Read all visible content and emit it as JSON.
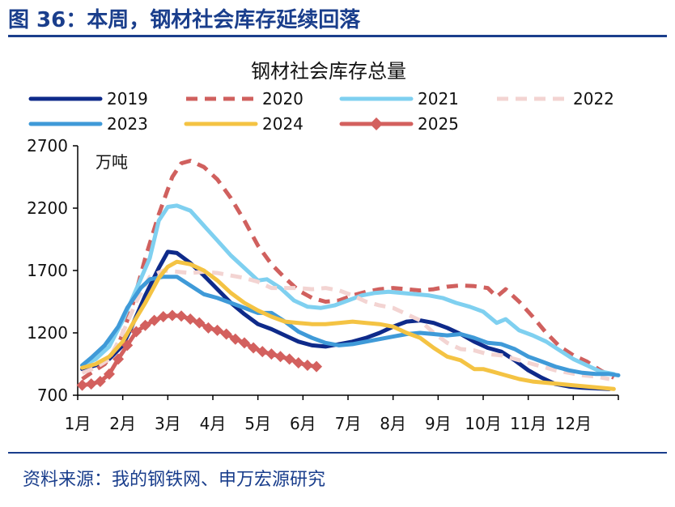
{
  "figure": {
    "title": "图 36：本周，钢材社会库存延续回落",
    "source": "资料来源：我的钢铁网、申万宏源研究"
  },
  "chart_data": {
    "type": "line",
    "title": "钢材社会库存总量",
    "unit": "万吨",
    "xlabel": "",
    "ylabel": "",
    "ylim": [
      700,
      2700
    ],
    "yticks": [
      700,
      1200,
      1700,
      2200,
      2700
    ],
    "x_tick_labels": [
      "1月",
      "2月",
      "3月",
      "4月",
      "5月",
      "6月",
      "7月",
      "8月",
      "9月",
      "10月",
      "11月",
      "12月"
    ],
    "x_note": "x values are month positions (1 = start of Jan, 13 = end of Dec)",
    "xlim": [
      1,
      13
    ],
    "legend_position": "top",
    "series": [
      {
        "name": "2019",
        "color": "#0e2a8a",
        "style": "solid",
        "points": [
          [
            1.1,
            910
          ],
          [
            1.4,
            940
          ],
          [
            1.7,
            990
          ],
          [
            2.0,
            1100
          ],
          [
            2.2,
            1250
          ],
          [
            2.5,
            1500
          ],
          [
            2.8,
            1720
          ],
          [
            3.0,
            1850
          ],
          [
            3.2,
            1840
          ],
          [
            3.5,
            1760
          ],
          [
            3.8,
            1660
          ],
          [
            4.1,
            1550
          ],
          [
            4.4,
            1440
          ],
          [
            4.7,
            1350
          ],
          [
            5.0,
            1270
          ],
          [
            5.3,
            1230
          ],
          [
            5.6,
            1180
          ],
          [
            5.9,
            1130
          ],
          [
            6.2,
            1100
          ],
          [
            6.5,
            1090
          ],
          [
            6.8,
            1110
          ],
          [
            7.1,
            1130
          ],
          [
            7.4,
            1160
          ],
          [
            7.7,
            1200
          ],
          [
            8.0,
            1250
          ],
          [
            8.3,
            1290
          ],
          [
            8.6,
            1300
          ],
          [
            8.9,
            1280
          ],
          [
            9.2,
            1240
          ],
          [
            9.5,
            1190
          ],
          [
            9.8,
            1130
          ],
          [
            10.1,
            1080
          ],
          [
            10.4,
            1050
          ],
          [
            10.7,
            980
          ],
          [
            11.0,
            900
          ],
          [
            11.3,
            840
          ],
          [
            11.6,
            790
          ],
          [
            11.9,
            770
          ],
          [
            12.2,
            760
          ],
          [
            12.5,
            755
          ],
          [
            12.8,
            750
          ]
        ]
      },
      {
        "name": "2020",
        "color": "#d0605e",
        "style": "dashed",
        "points": [
          [
            1.1,
            830
          ],
          [
            1.3,
            880
          ],
          [
            1.6,
            950
          ],
          [
            1.9,
            1100
          ],
          [
            2.2,
            1400
          ],
          [
            2.5,
            1800
          ],
          [
            2.8,
            2150
          ],
          [
            3.1,
            2450
          ],
          [
            3.3,
            2560
          ],
          [
            3.5,
            2580
          ],
          [
            3.8,
            2530
          ],
          [
            4.1,
            2430
          ],
          [
            4.4,
            2280
          ],
          [
            4.7,
            2100
          ],
          [
            5.0,
            1900
          ],
          [
            5.3,
            1750
          ],
          [
            5.6,
            1640
          ],
          [
            5.9,
            1540
          ],
          [
            6.2,
            1480
          ],
          [
            6.5,
            1450
          ],
          [
            6.8,
            1460
          ],
          [
            7.1,
            1500
          ],
          [
            7.4,
            1530
          ],
          [
            7.7,
            1550
          ],
          [
            8.0,
            1560
          ],
          [
            8.3,
            1550
          ],
          [
            8.6,
            1540
          ],
          [
            8.9,
            1550
          ],
          [
            9.2,
            1570
          ],
          [
            9.5,
            1580
          ],
          [
            9.8,
            1575
          ],
          [
            10.1,
            1560
          ],
          [
            10.3,
            1490
          ],
          [
            10.5,
            1550
          ],
          [
            10.8,
            1450
          ],
          [
            11.1,
            1330
          ],
          [
            11.4,
            1200
          ],
          [
            11.7,
            1090
          ],
          [
            12.0,
            1020
          ],
          [
            12.3,
            970
          ],
          [
            12.6,
            900
          ],
          [
            12.9,
            840
          ]
        ]
      },
      {
        "name": "2021",
        "color": "#7fd0f0",
        "style": "solid",
        "points": [
          [
            1.1,
            940
          ],
          [
            1.4,
            990
          ],
          [
            1.7,
            1090
          ],
          [
            2.0,
            1300
          ],
          [
            2.3,
            1550
          ],
          [
            2.6,
            1800
          ],
          [
            2.8,
            2100
          ],
          [
            3.0,
            2210
          ],
          [
            3.2,
            2220
          ],
          [
            3.5,
            2180
          ],
          [
            3.8,
            2060
          ],
          [
            4.1,
            1940
          ],
          [
            4.4,
            1820
          ],
          [
            4.7,
            1720
          ],
          [
            5.0,
            1620
          ],
          [
            5.2,
            1630
          ],
          [
            5.5,
            1560
          ],
          [
            5.8,
            1460
          ],
          [
            6.1,
            1410
          ],
          [
            6.4,
            1400
          ],
          [
            6.7,
            1420
          ],
          [
            7.0,
            1460
          ],
          [
            7.3,
            1500
          ],
          [
            7.6,
            1520
          ],
          [
            7.9,
            1530
          ],
          [
            8.2,
            1520
          ],
          [
            8.5,
            1510
          ],
          [
            8.8,
            1500
          ],
          [
            9.1,
            1480
          ],
          [
            9.4,
            1440
          ],
          [
            9.7,
            1410
          ],
          [
            10.0,
            1370
          ],
          [
            10.3,
            1280
          ],
          [
            10.5,
            1310
          ],
          [
            10.8,
            1220
          ],
          [
            11.1,
            1180
          ],
          [
            11.4,
            1130
          ],
          [
            11.7,
            1060
          ],
          [
            12.0,
            990
          ],
          [
            12.3,
            940
          ],
          [
            12.6,
            890
          ],
          [
            12.9,
            870
          ]
        ]
      },
      {
        "name": "2022",
        "color": "#f3d4d2",
        "style": "dashed",
        "points": [
          [
            1.1,
            880
          ],
          [
            1.4,
            920
          ],
          [
            1.7,
            990
          ],
          [
            2.0,
            1200
          ],
          [
            2.3,
            1450
          ],
          [
            2.6,
            1650
          ],
          [
            2.9,
            1700
          ],
          [
            3.2,
            1690
          ],
          [
            3.5,
            1680
          ],
          [
            3.8,
            1690
          ],
          [
            4.1,
            1680
          ],
          [
            4.4,
            1660
          ],
          [
            4.7,
            1640
          ],
          [
            5.0,
            1610
          ],
          [
            5.3,
            1560
          ],
          [
            5.6,
            1560
          ],
          [
            5.9,
            1560
          ],
          [
            6.2,
            1550
          ],
          [
            6.5,
            1560
          ],
          [
            6.8,
            1540
          ],
          [
            7.1,
            1500
          ],
          [
            7.4,
            1450
          ],
          [
            7.7,
            1420
          ],
          [
            8.0,
            1400
          ],
          [
            8.3,
            1350
          ],
          [
            8.6,
            1300
          ],
          [
            8.9,
            1200
          ],
          [
            9.2,
            1120
          ],
          [
            9.5,
            1070
          ],
          [
            9.8,
            1060
          ],
          [
            10.1,
            1030
          ],
          [
            10.4,
            1020
          ],
          [
            10.7,
            990
          ],
          [
            11.0,
            960
          ],
          [
            11.3,
            930
          ],
          [
            11.6,
            900
          ],
          [
            11.9,
            880
          ],
          [
            12.2,
            860
          ],
          [
            12.5,
            850
          ],
          [
            12.8,
            830
          ]
        ]
      },
      {
        "name": "2023",
        "color": "#3f9ad8",
        "style": "solid",
        "points": [
          [
            1.1,
            940
          ],
          [
            1.3,
            1000
          ],
          [
            1.6,
            1100
          ],
          [
            1.9,
            1250
          ],
          [
            2.1,
            1400
          ],
          [
            2.4,
            1560
          ],
          [
            2.6,
            1630
          ],
          [
            2.9,
            1650
          ],
          [
            3.2,
            1650
          ],
          [
            3.5,
            1580
          ],
          [
            3.8,
            1510
          ],
          [
            4.1,
            1480
          ],
          [
            4.4,
            1440
          ],
          [
            4.7,
            1400
          ],
          [
            5.0,
            1360
          ],
          [
            5.3,
            1360
          ],
          [
            5.6,
            1290
          ],
          [
            5.9,
            1210
          ],
          [
            6.2,
            1160
          ],
          [
            6.5,
            1120
          ],
          [
            6.8,
            1100
          ],
          [
            7.1,
            1110
          ],
          [
            7.4,
            1130
          ],
          [
            7.7,
            1150
          ],
          [
            8.0,
            1170
          ],
          [
            8.3,
            1190
          ],
          [
            8.6,
            1200
          ],
          [
            8.9,
            1190
          ],
          [
            9.2,
            1180
          ],
          [
            9.5,
            1190
          ],
          [
            9.8,
            1160
          ],
          [
            10.1,
            1120
          ],
          [
            10.4,
            1110
          ],
          [
            10.7,
            1070
          ],
          [
            11.0,
            1010
          ],
          [
            11.3,
            970
          ],
          [
            11.6,
            930
          ],
          [
            11.9,
            900
          ],
          [
            12.2,
            880
          ],
          [
            12.5,
            870
          ],
          [
            12.8,
            870
          ],
          [
            13.0,
            860
          ]
        ]
      },
      {
        "name": "2024",
        "color": "#f4c343",
        "style": "solid",
        "points": [
          [
            1.1,
            920
          ],
          [
            1.4,
            950
          ],
          [
            1.7,
            1010
          ],
          [
            2.0,
            1130
          ],
          [
            2.2,
            1260
          ],
          [
            2.5,
            1440
          ],
          [
            2.8,
            1640
          ],
          [
            3.0,
            1730
          ],
          [
            3.2,
            1770
          ],
          [
            3.5,
            1750
          ],
          [
            3.8,
            1700
          ],
          [
            4.1,
            1620
          ],
          [
            4.4,
            1520
          ],
          [
            4.7,
            1440
          ],
          [
            5.0,
            1380
          ],
          [
            5.3,
            1330
          ],
          [
            5.6,
            1290
          ],
          [
            5.9,
            1280
          ],
          [
            6.2,
            1270
          ],
          [
            6.5,
            1270
          ],
          [
            6.8,
            1280
          ],
          [
            7.1,
            1290
          ],
          [
            7.4,
            1280
          ],
          [
            7.7,
            1270
          ],
          [
            8.0,
            1250
          ],
          [
            8.3,
            1200
          ],
          [
            8.6,
            1160
          ],
          [
            8.9,
            1080
          ],
          [
            9.2,
            1010
          ],
          [
            9.5,
            980
          ],
          [
            9.8,
            910
          ],
          [
            10.0,
            910
          ],
          [
            10.2,
            890
          ],
          [
            10.5,
            860
          ],
          [
            10.8,
            830
          ],
          [
            11.1,
            810
          ],
          [
            11.4,
            800
          ],
          [
            11.7,
            790
          ],
          [
            12.0,
            780
          ],
          [
            12.3,
            770
          ],
          [
            12.6,
            760
          ],
          [
            12.9,
            750
          ]
        ]
      },
      {
        "name": "2025",
        "color": "#d3605e",
        "style": "marker-diamond",
        "points": [
          [
            1.1,
            780
          ],
          [
            1.3,
            790
          ],
          [
            1.5,
            810
          ],
          [
            1.7,
            870
          ],
          [
            1.9,
            990
          ],
          [
            2.1,
            1100
          ],
          [
            2.3,
            1210
          ],
          [
            2.5,
            1260
          ],
          [
            2.7,
            1300
          ],
          [
            2.9,
            1330
          ],
          [
            3.1,
            1340
          ],
          [
            3.3,
            1335
          ],
          [
            3.5,
            1310
          ],
          [
            3.7,
            1280
          ],
          [
            3.9,
            1240
          ],
          [
            4.1,
            1220
          ],
          [
            4.3,
            1190
          ],
          [
            4.5,
            1150
          ],
          [
            4.7,
            1120
          ],
          [
            4.9,
            1080
          ],
          [
            5.1,
            1050
          ],
          [
            5.3,
            1030
          ],
          [
            5.5,
            1010
          ],
          [
            5.7,
            990
          ],
          [
            5.9,
            960
          ],
          [
            6.1,
            940
          ],
          [
            6.3,
            930
          ]
        ]
      }
    ]
  }
}
